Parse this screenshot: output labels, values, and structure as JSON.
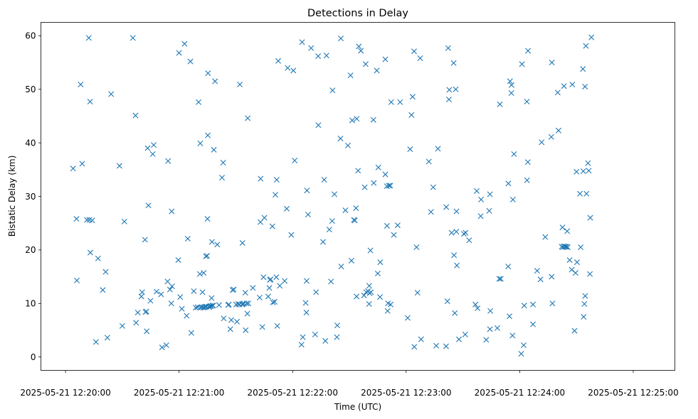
{
  "chart_data": {
    "type": "scatter",
    "title": "Detections in Delay",
    "xlabel": "Time (UTC)",
    "ylabel": "Bistatic Delay (km)",
    "marker": "x",
    "color": "#1f77b4",
    "x_unit": "seconds after 2025-05-21 12:20:00",
    "xlim": [
      -13,
      322
    ],
    "ylim": [
      -2.5,
      62.5
    ],
    "xticks": [
      0,
      60,
      120,
      180,
      240,
      300
    ],
    "xtick_labels": [
      "2025-05-21 12:20:00",
      "2025-05-21 12:21:00",
      "2025-05-21 12:22:00",
      "2025-05-21 12:23:00",
      "2025-05-21 12:24:00",
      "2025-05-21 12:25:00"
    ],
    "yticks": [
      0,
      10,
      20,
      30,
      40,
      50,
      60
    ],
    "ytick_labels": [
      "0",
      "10",
      "20",
      "30",
      "40",
      "50",
      "60"
    ],
    "series": [
      {
        "name": "Detections",
        "points": [
          [
            4.0,
            35.2
          ],
          [
            5.8,
            25.8
          ],
          [
            6.0,
            14.3
          ],
          [
            8.0,
            50.9
          ],
          [
            8.8,
            36.1
          ],
          [
            11.3,
            25.6
          ],
          [
            12.3,
            59.6
          ],
          [
            12.6,
            25.6
          ],
          [
            13.0,
            47.7
          ],
          [
            13.1,
            19.5
          ],
          [
            14.1,
            25.5
          ],
          [
            16.1,
            2.8
          ],
          [
            17.2,
            18.4
          ],
          [
            19.7,
            12.5
          ],
          [
            21.2,
            15.9
          ],
          [
            22.1,
            3.6
          ],
          [
            24.1,
            49.1
          ],
          [
            28.5,
            35.7
          ],
          [
            30.0,
            5.8
          ],
          [
            31.1,
            25.3
          ],
          [
            35.6,
            59.6
          ],
          [
            37.0,
            45.1
          ],
          [
            37.3,
            6.4
          ],
          [
            38.2,
            8.3
          ],
          [
            40.1,
            11.3
          ],
          [
            40.5,
            12.1
          ],
          [
            42.0,
            21.9
          ],
          [
            42.3,
            8.4
          ],
          [
            42.7,
            8.5
          ],
          [
            42.9,
            4.8
          ],
          [
            43.4,
            39.0
          ],
          [
            43.8,
            28.3
          ],
          [
            44.9,
            10.5
          ],
          [
            46.1,
            37.9
          ],
          [
            46.6,
            39.6
          ],
          [
            48.1,
            12.2
          ],
          [
            50.5,
            11.7
          ],
          [
            51.0,
            1.8
          ],
          [
            53.3,
            2.2
          ],
          [
            53.9,
            14.1
          ],
          [
            54.2,
            36.6
          ],
          [
            55.2,
            12.6
          ],
          [
            55.9,
            10.0
          ],
          [
            56.1,
            27.2
          ],
          [
            56.3,
            13.2
          ],
          [
            59.6,
            18.1
          ],
          [
            60.0,
            56.8
          ],
          [
            60.6,
            11.2
          ],
          [
            61.5,
            9.0
          ],
          [
            62.9,
            58.5
          ],
          [
            64.0,
            7.7
          ],
          [
            64.6,
            22.1
          ],
          [
            66.0,
            55.2
          ],
          [
            66.5,
            4.5
          ],
          [
            67.8,
            12.3
          ],
          [
            68.8,
            9.2
          ],
          [
            69.8,
            9.3
          ],
          [
            70.3,
            47.6
          ],
          [
            71.0,
            15.5
          ],
          [
            71.2,
            39.9
          ],
          [
            71.3,
            9.2
          ],
          [
            71.9,
            9.3
          ],
          [
            72.4,
            12.1
          ],
          [
            72.8,
            9.2
          ],
          [
            73.0,
            15.7
          ],
          [
            73.3,
            9.3
          ],
          [
            73.9,
            9.4
          ],
          [
            74.2,
            18.8
          ],
          [
            74.5,
            9.4
          ],
          [
            74.8,
            18.9
          ],
          [
            75.0,
            25.8
          ],
          [
            75.2,
            41.4
          ],
          [
            75.3,
            53.0
          ],
          [
            75.7,
            9.4
          ],
          [
            76.0,
            9.3
          ],
          [
            76.4,
            9.5
          ],
          [
            77.0,
            9.5
          ],
          [
            77.2,
            11.0
          ],
          [
            77.4,
            21.5
          ],
          [
            77.7,
            9.6
          ],
          [
            78.0,
            9.6
          ],
          [
            78.4,
            38.7
          ],
          [
            79.0,
            51.5
          ],
          [
            80.2,
            21.0
          ],
          [
            81.1,
            9.7
          ],
          [
            82.7,
            33.5
          ],
          [
            83.3,
            36.3
          ],
          [
            83.6,
            7.2
          ],
          [
            86.0,
            9.7
          ],
          [
            86.3,
            9.8
          ],
          [
            87.1,
            5.2
          ],
          [
            87.6,
            6.9
          ],
          [
            88.3,
            12.5
          ],
          [
            88.9,
            12.6
          ],
          [
            90.1,
            9.8
          ],
          [
            90.6,
            6.6
          ],
          [
            91.2,
            9.9
          ],
          [
            91.9,
            9.8
          ],
          [
            92.1,
            50.9
          ],
          [
            93.3,
            9.8
          ],
          [
            93.5,
            21.3
          ],
          [
            93.7,
            9.9
          ],
          [
            94.3,
            10.0
          ],
          [
            95.0,
            12.0
          ],
          [
            95.2,
            5.0
          ],
          [
            95.7,
            10.0
          ],
          [
            96.1,
            8.1
          ],
          [
            96.3,
            44.6
          ],
          [
            96.6,
            10.0
          ],
          [
            99.0,
            12.9
          ],
          [
            102.6,
            11.1
          ],
          [
            103.0,
            25.2
          ],
          [
            103.1,
            33.3
          ],
          [
            104.0,
            5.6
          ],
          [
            104.6,
            14.9
          ],
          [
            105.1,
            26.0
          ],
          [
            107.1,
            11.3
          ],
          [
            107.7,
            12.9
          ],
          [
            108.0,
            14.4
          ],
          [
            108.4,
            14.5
          ],
          [
            109.3,
            24.4
          ],
          [
            109.6,
            10.2
          ],
          [
            110.5,
            10.3
          ],
          [
            110.9,
            30.3
          ],
          [
            111.4,
            14.9
          ],
          [
            111.6,
            33.1
          ],
          [
            111.9,
            5.8
          ],
          [
            112.4,
            55.3
          ],
          [
            113.2,
            13.3
          ],
          [
            115.8,
            14.2
          ],
          [
            116.9,
            27.7
          ],
          [
            117.4,
            54.0
          ],
          [
            119.3,
            22.8
          ],
          [
            120.4,
            53.5
          ],
          [
            121.1,
            36.7
          ],
          [
            124.7,
            2.3
          ],
          [
            125.0,
            58.8
          ],
          [
            125.4,
            3.7
          ],
          [
            126.9,
            10.1
          ],
          [
            127.3,
            8.3
          ],
          [
            127.4,
            14.2
          ],
          [
            127.6,
            31.1
          ],
          [
            128.2,
            26.6
          ],
          [
            129.8,
            57.7
          ],
          [
            131.9,
            4.2
          ],
          [
            132.4,
            12.1
          ],
          [
            133.5,
            56.2
          ],
          [
            133.6,
            43.3
          ],
          [
            136.1,
            21.5
          ],
          [
            136.7,
            33.1
          ],
          [
            137.3,
            3.0
          ],
          [
            137.9,
            56.3
          ],
          [
            139.4,
            23.8
          ],
          [
            140.3,
            14.1
          ],
          [
            140.9,
            25.4
          ],
          [
            141.1,
            49.8
          ],
          [
            142.1,
            30.4
          ],
          [
            143.4,
            3.7
          ],
          [
            143.6,
            5.9
          ],
          [
            145.3,
            40.8
          ],
          [
            145.5,
            59.5
          ],
          [
            145.7,
            16.9
          ],
          [
            147.9,
            27.4
          ],
          [
            149.2,
            39.5
          ],
          [
            150.6,
            52.6
          ],
          [
            151.1,
            18.0
          ],
          [
            151.5,
            44.2
          ],
          [
            152.4,
            25.6
          ],
          [
            152.9,
            25.5
          ],
          [
            153.5,
            27.8
          ],
          [
            153.8,
            11.3
          ],
          [
            153.9,
            44.5
          ],
          [
            154.6,
            34.8
          ],
          [
            155.0,
            58.0
          ],
          [
            156.1,
            57.2
          ],
          [
            157.7,
            11.5
          ],
          [
            158.1,
            31.7
          ],
          [
            158.6,
            54.7
          ],
          [
            158.9,
            12.1
          ],
          [
            159.8,
            12.3
          ],
          [
            160.4,
            9.9
          ],
          [
            160.5,
            13.3
          ],
          [
            160.7,
            11.9
          ],
          [
            161.1,
            19.9
          ],
          [
            161.4,
            12.1
          ],
          [
            162.7,
            44.3
          ],
          [
            162.9,
            32.5
          ],
          [
            164.5,
            53.5
          ],
          [
            165.0,
            15.6
          ],
          [
            165.3,
            35.4
          ],
          [
            166.2,
            11.2
          ],
          [
            166.3,
            17.7
          ],
          [
            169.0,
            55.6
          ],
          [
            169.0,
            34.1
          ],
          [
            169.8,
            31.9
          ],
          [
            169.9,
            24.5
          ],
          [
            170.2,
            8.6
          ],
          [
            170.4,
            10.0
          ],
          [
            170.9,
            32.0
          ],
          [
            171.6,
            32.0
          ],
          [
            171.8,
            9.8
          ],
          [
            172.1,
            47.6
          ],
          [
            173.5,
            22.8
          ],
          [
            175.5,
            24.6
          ],
          [
            176.8,
            47.6
          ],
          [
            180.8,
            7.3
          ],
          [
            182.1,
            38.8
          ],
          [
            182.8,
            45.2
          ],
          [
            183.4,
            48.6
          ],
          [
            184.2,
            57.1
          ],
          [
            184.3,
            1.9
          ],
          [
            185.5,
            20.5
          ],
          [
            186.0,
            12.0
          ],
          [
            187.4,
            55.8
          ],
          [
            187.9,
            3.3
          ],
          [
            192.0,
            36.5
          ],
          [
            193.1,
            27.1
          ],
          [
            194.3,
            31.7
          ],
          [
            195.9,
            2.1
          ],
          [
            196.8,
            38.9
          ],
          [
            201.1,
            2.0
          ],
          [
            201.2,
            28.0
          ],
          [
            201.8,
            10.4
          ],
          [
            202.2,
            57.7
          ],
          [
            202.6,
            48.1
          ],
          [
            202.8,
            49.9
          ],
          [
            204.0,
            23.2
          ],
          [
            205.1,
            54.9
          ],
          [
            205.3,
            19.0
          ],
          [
            205.7,
            8.2
          ],
          [
            206.2,
            50.0
          ],
          [
            206.5,
            23.4
          ],
          [
            206.6,
            27.2
          ],
          [
            206.8,
            17.1
          ],
          [
            207.9,
            3.3
          ],
          [
            210.5,
            23.0
          ],
          [
            211.2,
            4.2
          ],
          [
            211.4,
            23.2
          ],
          [
            213.3,
            21.8
          ],
          [
            216.6,
            9.8
          ],
          [
            217.3,
            31.0
          ],
          [
            217.7,
            9.1
          ],
          [
            219.4,
            26.3
          ],
          [
            219.6,
            29.4
          ],
          [
            222.3,
            3.2
          ],
          [
            223.9,
            27.3
          ],
          [
            224.3,
            30.4
          ],
          [
            224.3,
            5.2
          ],
          [
            224.5,
            8.6
          ],
          [
            228.2,
            5.4
          ],
          [
            229.2,
            14.6
          ],
          [
            229.5,
            47.2
          ],
          [
            230.0,
            14.6
          ],
          [
            233.9,
            16.9
          ],
          [
            234.0,
            32.4
          ],
          [
            234.6,
            7.6
          ],
          [
            234.9,
            51.5
          ],
          [
            235.6,
            49.3
          ],
          [
            235.7,
            50.8
          ],
          [
            236.2,
            4.0
          ],
          [
            236.4,
            29.4
          ],
          [
            237.0,
            37.9
          ],
          [
            240.8,
            0.6
          ],
          [
            241.2,
            54.7
          ],
          [
            242.1,
            2.2
          ],
          [
            242.4,
            9.6
          ],
          [
            243.8,
            47.7
          ],
          [
            243.9,
            33.0
          ],
          [
            244.3,
            36.4
          ],
          [
            244.4,
            57.2
          ],
          [
            247.0,
            9.8
          ],
          [
            247.0,
            6.1
          ],
          [
            249.2,
            16.1
          ],
          [
            251.0,
            14.5
          ],
          [
            251.6,
            40.1
          ],
          [
            253.5,
            22.4
          ],
          [
            256.7,
            41.1
          ],
          [
            256.9,
            15.0
          ],
          [
            257.0,
            55.0
          ],
          [
            257.3,
            10.0
          ],
          [
            260.1,
            49.4
          ],
          [
            260.5,
            42.3
          ],
          [
            262.2,
            20.6
          ],
          [
            262.6,
            24.2
          ],
          [
            262.8,
            20.5
          ],
          [
            263.3,
            20.7
          ],
          [
            263.4,
            50.6
          ],
          [
            263.9,
            20.6
          ],
          [
            264.2,
            20.6
          ],
          [
            264.8,
            20.6
          ],
          [
            265.1,
            23.5
          ],
          [
            265.4,
            20.5
          ],
          [
            266.4,
            18.1
          ],
          [
            267.5,
            16.3
          ],
          [
            267.8,
            50.9
          ],
          [
            269.0,
            4.9
          ],
          [
            269.5,
            15.7
          ],
          [
            270.0,
            34.6
          ],
          [
            270.3,
            17.7
          ],
          [
            271.8,
            30.5
          ],
          [
            272.2,
            20.5
          ],
          [
            273.4,
            53.8
          ],
          [
            273.6,
            34.7
          ],
          [
            273.8,
            7.5
          ],
          [
            274.2,
            9.9
          ],
          [
            274.5,
            50.5
          ],
          [
            274.6,
            11.4
          ],
          [
            275.0,
            58.1
          ],
          [
            275.3,
            30.5
          ],
          [
            276.1,
            36.2
          ],
          [
            276.5,
            34.8
          ],
          [
            277.1,
            15.5
          ],
          [
            277.3,
            26.0
          ],
          [
            277.9,
            59.7
          ]
        ]
      }
    ]
  }
}
